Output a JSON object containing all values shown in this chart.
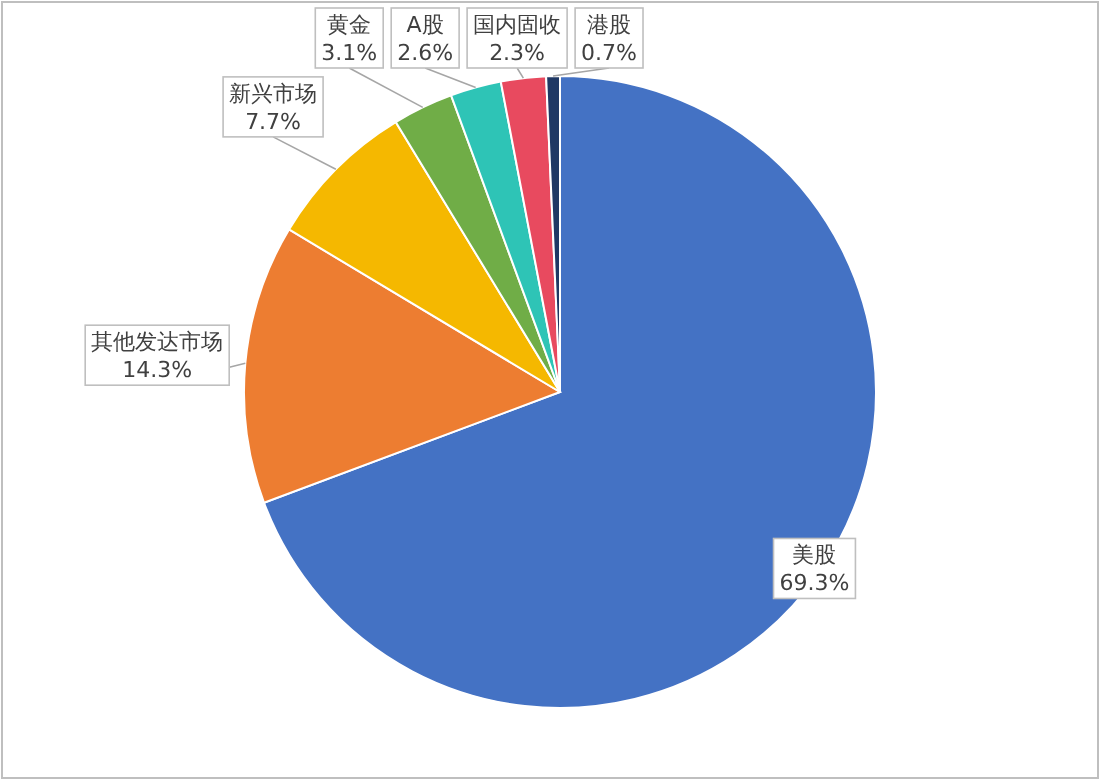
{
  "chart_data": {
    "type": "pie",
    "categories": [
      "美股",
      "其他发达市场",
      "新兴市场",
      "黄金",
      "A股",
      "国内固收",
      "港股"
    ],
    "values": [
      69.3,
      14.3,
      7.7,
      3.1,
      2.6,
      2.3,
      0.7
    ],
    "colors": [
      "#4472c4",
      "#ed7d31",
      "#f5b800",
      "#70ad47",
      "#2ec4b6",
      "#e84a5f",
      "#1f3864"
    ],
    "value_labels": [
      "69.3%",
      "14.3%",
      "7.7%",
      "3.1%",
      "2.6%",
      "2.3%",
      "0.7%"
    ],
    "legend": false
  }
}
